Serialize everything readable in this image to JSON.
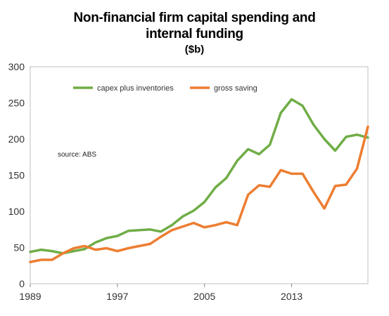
{
  "chart_data": {
    "type": "line",
    "title_line1": "Non-financial firm capital spending and",
    "title_line2": "internal funding",
    "subtitle": "($b)",
    "source_note": "source:  ABS",
    "x": [
      1989,
      1990,
      1991,
      1992,
      1993,
      1994,
      1995,
      1996,
      1997,
      1998,
      1999,
      2000,
      2001,
      2002,
      2003,
      2004,
      2005,
      2006,
      2007,
      2008,
      2009,
      2010,
      2011,
      2012,
      2013,
      2014,
      2015,
      2016,
      2017,
      2018,
      2019,
      2020
    ],
    "xlim": [
      1989,
      2020
    ],
    "xticks": [
      {
        "value": 1989,
        "label": "1989"
      },
      {
        "value": 1997,
        "label": "1997"
      },
      {
        "value": 2005,
        "label": "2005"
      },
      {
        "value": 2013,
        "label": "2013"
      }
    ],
    "ylim": [
      0,
      300
    ],
    "yticks": [
      0,
      50,
      100,
      150,
      200,
      250,
      300
    ],
    "grid": false,
    "legend_position": "top",
    "series": [
      {
        "name": "capex plus inventories",
        "color": "#70AD47",
        "values": [
          44,
          47,
          45,
          42,
          45,
          48,
          57,
          63,
          66,
          73,
          74,
          75,
          72,
          81,
          93,
          101,
          113,
          133,
          146,
          170,
          186,
          179,
          192,
          236,
          255,
          246,
          220,
          200,
          184,
          203,
          206,
          202
        ]
      },
      {
        "name": "gross saving",
        "color": "#ED7D31",
        "values": [
          30,
          33,
          33,
          42,
          49,
          52,
          47,
          49,
          45,
          49,
          52,
          55,
          65,
          74,
          79,
          84,
          78,
          81,
          85,
          81,
          123,
          136,
          134,
          157,
          152,
          152,
          127,
          104,
          135,
          137,
          159,
          217
        ]
      }
    ]
  }
}
